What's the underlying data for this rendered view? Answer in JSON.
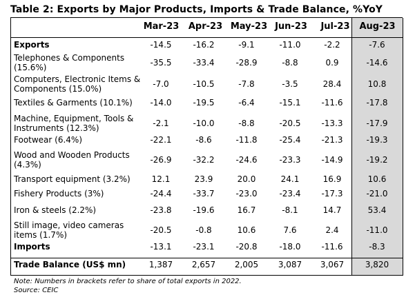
{
  "title": "Table 2: Exports by Major Products, Imports & Trade Balance, %YoY",
  "columns": [
    "Mar-23",
    "Apr-23",
    "May-23",
    "Jun-23",
    "Jul-23",
    "Aug-23"
  ],
  "rows": [
    {
      "label": "Exports",
      "bold": true,
      "values": [
        "-14.5",
        "-16.2",
        "-9.1",
        "-11.0",
        "-2.2",
        "-7.6"
      ]
    },
    {
      "label": "Telephones & Components (15.6%)",
      "bold": false,
      "values": [
        "-35.5",
        "-33.4",
        "-28.9",
        "-8.8",
        "0.9",
        "-14.6"
      ]
    },
    {
      "label": "Computers, Electronic Items & Components (15.0%)",
      "bold": false,
      "values": [
        "-7.0",
        "-10.5",
        "-7.8",
        "-3.5",
        "28.4",
        "10.8"
      ]
    },
    {
      "label": "Textiles & Garments (10.1%)",
      "bold": false,
      "values": [
        "-14.0",
        "-19.5",
        "-6.4",
        "-15.1",
        "-11.6",
        "-17.8"
      ]
    },
    {
      "label": "Machine, Equipment, Tools & Instruments (12.3%)",
      "bold": false,
      "values": [
        "-2.1",
        "-10.0",
        "-8.8",
        "-20.5",
        "-13.3",
        "-17.9"
      ]
    },
    {
      "label": "Footwear (6.4%)",
      "bold": false,
      "values": [
        "-22.1",
        "-8.6",
        "-11.8",
        "-25.4",
        "-21.3",
        "-19.3"
      ]
    },
    {
      "label": "Wood and Wooden Products (4.3%)",
      "bold": false,
      "values": [
        "-26.9",
        "-32.2",
        "-24.6",
        "-23.3",
        "-14.9",
        "-19.2"
      ]
    },
    {
      "label": "Transport equipment (3.2%)",
      "bold": false,
      "values": [
        "12.1",
        "23.9",
        "20.0",
        "24.1",
        "16.9",
        "10.6"
      ]
    },
    {
      "label": "Fishery Products (3%)",
      "bold": false,
      "values": [
        "-24.4",
        "-33.7",
        "-23.0",
        "-23.4",
        "-17.3",
        "-21.0"
      ]
    },
    {
      "label": "Iron & steels (2.2%)",
      "bold": false,
      "values": [
        "-23.8",
        "-19.6",
        "16.7",
        "-8.1",
        "14.7",
        "53.4"
      ]
    },
    {
      "label": "Still image, video cameras items (1.7%)",
      "bold": false,
      "values": [
        "-20.5",
        "-0.8",
        "10.6",
        "7.6",
        "2.4",
        "-11.0"
      ]
    },
    {
      "label": "Imports",
      "bold": true,
      "values": [
        "-13.1",
        "-23.1",
        "-20.8",
        "-18.0",
        "-11.6",
        "-8.3"
      ]
    },
    {
      "label": "Trade Balance (US$ mn)",
      "bold": true,
      "values": [
        "1,387",
        "2,657",
        "2,005",
        "3,087",
        "3,067",
        "3,820"
      ]
    }
  ],
  "note": "Note: Numbers in brackets refer to share of total exports in 2022.",
  "source": "Source: CEIC",
  "colors": {
    "highlight_column": "#d9d9d9",
    "rule": "#000000"
  }
}
